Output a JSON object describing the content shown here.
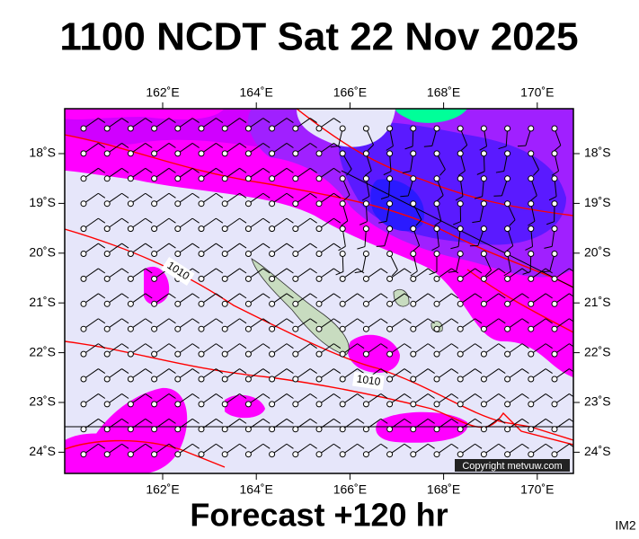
{
  "header": {
    "title": "1100 NCDT Sat 22 Nov 2025"
  },
  "map": {
    "lon_labels": [
      "162˚E",
      "164˚E",
      "166˚E",
      "168˚E",
      "170˚E"
    ],
    "lat_labels": [
      "18˚S",
      "19˚S",
      "20˚S",
      "21˚S",
      "22˚S",
      "23˚S",
      "24˚S"
    ],
    "contour_labels": [
      "1010",
      "1010"
    ],
    "copyright": "Copyright metvuw.com"
  },
  "footer": {
    "forecast": "Forecast +120 hr",
    "id": "IM2"
  }
}
